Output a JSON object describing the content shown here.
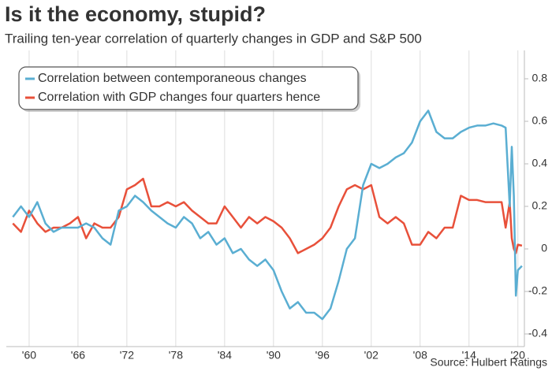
{
  "chart_data": {
    "type": "line",
    "title": "Is it the economy, stupid?",
    "subtitle": "Trailing ten-year correlation of quarterly changes in GDP and S&P 500",
    "source": "Source: Hulbert Ratings",
    "x": [
      1958,
      1959,
      1960,
      1961,
      1962,
      1963,
      1964,
      1965,
      1966,
      1967,
      1968,
      1969,
      1970,
      1971,
      1972,
      1973,
      1974,
      1975,
      1976,
      1977,
      1978,
      1979,
      1980,
      1981,
      1982,
      1983,
      1984,
      1985,
      1986,
      1987,
      1988,
      1989,
      1990,
      1991,
      1992,
      1993,
      1994,
      1995,
      1996,
      1997,
      1998,
      1999,
      2000,
      2001,
      2002,
      2003,
      2004,
      2005,
      2006,
      2007,
      2008,
      2009,
      2010,
      2011,
      2012,
      2013,
      2014,
      2015,
      2016,
      2017,
      2018,
      2018.5,
      2019,
      2019.25,
      2019.5,
      2019.75,
      2020,
      2020.5
    ],
    "series": [
      {
        "name": "Correlation between contemporaneous changes",
        "color": "#5aaed2",
        "values": [
          0.15,
          0.2,
          0.15,
          0.22,
          0.12,
          0.08,
          0.1,
          0.1,
          0.1,
          0.12,
          0.1,
          0.05,
          0.02,
          0.18,
          0.2,
          0.25,
          0.22,
          0.18,
          0.15,
          0.12,
          0.1,
          0.15,
          0.12,
          0.05,
          0.08,
          0.02,
          0.05,
          -0.02,
          0.0,
          -0.05,
          -0.08,
          -0.05,
          -0.1,
          -0.2,
          -0.28,
          -0.25,
          -0.3,
          -0.3,
          -0.33,
          -0.28,
          -0.15,
          0.0,
          0.05,
          0.3,
          0.4,
          0.38,
          0.4,
          0.43,
          0.45,
          0.5,
          0.6,
          0.65,
          0.55,
          0.52,
          0.52,
          0.55,
          0.57,
          0.58,
          0.58,
          0.59,
          0.58,
          0.57,
          0.2,
          0.48,
          0.25,
          -0.22,
          -0.1,
          -0.08
        ]
      },
      {
        "name": "Correlation with GDP changes four quarters hence",
        "color": "#e8503a",
        "values": [
          0.12,
          0.08,
          0.18,
          0.12,
          0.08,
          0.1,
          0.1,
          0.12,
          0.15,
          0.05,
          0.12,
          0.1,
          0.1,
          0.15,
          0.28,
          0.3,
          0.33,
          0.2,
          0.2,
          0.22,
          0.2,
          0.22,
          0.18,
          0.15,
          0.12,
          0.12,
          0.2,
          0.15,
          0.1,
          0.15,
          0.12,
          0.15,
          0.13,
          0.1,
          0.05,
          -0.02,
          0.0,
          0.02,
          0.05,
          0.1,
          0.2,
          0.28,
          0.3,
          0.28,
          0.3,
          0.15,
          0.12,
          0.15,
          0.12,
          0.02,
          0.02,
          0.08,
          0.05,
          0.1,
          0.1,
          0.25,
          0.23,
          0.23,
          0.22,
          0.22,
          0.22,
          0.1,
          0.22,
          0.05,
          0.0,
          -0.02,
          0.02,
          0.015
        ]
      }
    ],
    "xlim": [
      1957.2,
      2020.8
    ],
    "xticks": [
      {
        "value": 1960,
        "label": "'60"
      },
      {
        "value": 1966,
        "label": "'66"
      },
      {
        "value": 1972,
        "label": "'72"
      },
      {
        "value": 1978,
        "label": "'78"
      },
      {
        "value": 1984,
        "label": "'84"
      },
      {
        "value": 1990,
        "label": "'90"
      },
      {
        "value": 1996,
        "label": "'96"
      },
      {
        "value": 2002,
        "label": "'02"
      },
      {
        "value": 2008,
        "label": "'08"
      },
      {
        "value": 2014,
        "label": "'14"
      },
      {
        "value": 2020,
        "label": "'20"
      }
    ],
    "ylim": [
      -0.4,
      0.8
    ],
    "yticks": [
      0.8,
      0.6,
      0.4,
      0.2,
      0,
      -0.2,
      -0.4
    ],
    "grid": true
  }
}
